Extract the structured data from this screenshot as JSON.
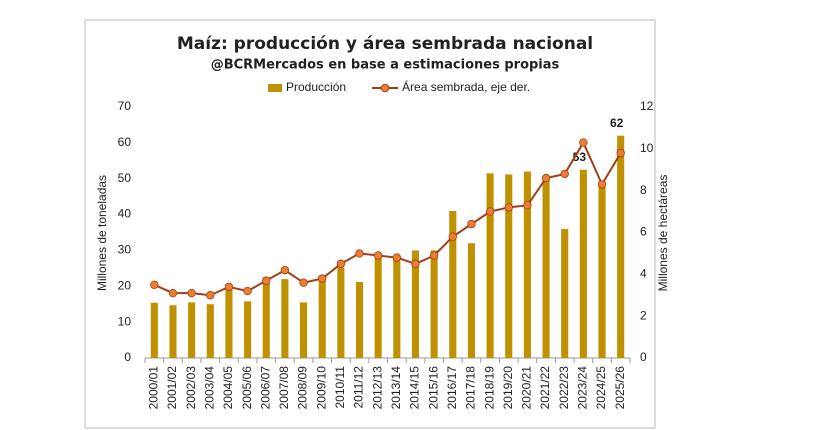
{
  "chart_data": {
    "type": "bar_line",
    "title": "Maíz: producción y área sembrada nacional",
    "subtitle": "@BCRMercados en base a estimaciones propias",
    "y_label": "Millones de toneladas",
    "y2_label": "Millones de hectáreas",
    "categories": [
      "2000/01",
      "2001/02",
      "2002/03",
      "2003/04",
      "2004/05",
      "2005/06",
      "2006/07",
      "2007/08",
      "2008/09",
      "2009/10",
      "2010/11",
      "2011/12",
      "2012/13",
      "2013/14",
      "2014/15",
      "2015/16",
      "2016/17",
      "2017/18",
      "2018/19",
      "2019/20",
      "2020/21",
      "2021/22",
      "2022/23",
      "2023/24",
      "2024/25",
      "2025/26"
    ],
    "series": [
      {
        "name": "Producción",
        "type": "bar",
        "color": "#bf9000",
        "values": [
          15.4,
          14.7,
          15.5,
          15.0,
          20.5,
          15.8,
          22.5,
          22.0,
          15.5,
          23.0,
          25.2,
          21.2,
          29.0,
          28.0,
          30.0,
          30.0,
          41.0,
          32.0,
          51.5,
          51.2,
          52.0,
          50.0,
          36.0,
          52.5,
          49.0,
          62
        ],
        "value_labels": [
          null,
          null,
          null,
          null,
          null,
          null,
          null,
          null,
          null,
          null,
          null,
          null,
          null,
          null,
          null,
          null,
          null,
          null,
          null,
          null,
          null,
          null,
          null,
          "53",
          null,
          "62"
        ]
      },
      {
        "name": "Área sembrada, eje der.",
        "type": "line",
        "axis": "y2",
        "color": "#a0401a",
        "marker_color": "#ed7d31",
        "values": [
          3.5,
          3.1,
          3.1,
          3.0,
          3.4,
          3.2,
          3.7,
          4.2,
          3.6,
          3.8,
          4.5,
          5.0,
          4.9,
          4.8,
          4.5,
          4.9,
          5.8,
          6.4,
          7.0,
          7.2,
          7.3,
          8.6,
          8.8,
          10.3,
          8.3,
          9.8
        ]
      }
    ],
    "ylim": [
      0,
      70
    ],
    "yticks": [
      0,
      10,
      20,
      30,
      40,
      50,
      60,
      70
    ],
    "y2lim": [
      0,
      12
    ],
    "y2ticks": [
      0,
      2,
      4,
      6,
      8,
      10,
      12
    ],
    "legend": "top"
  }
}
